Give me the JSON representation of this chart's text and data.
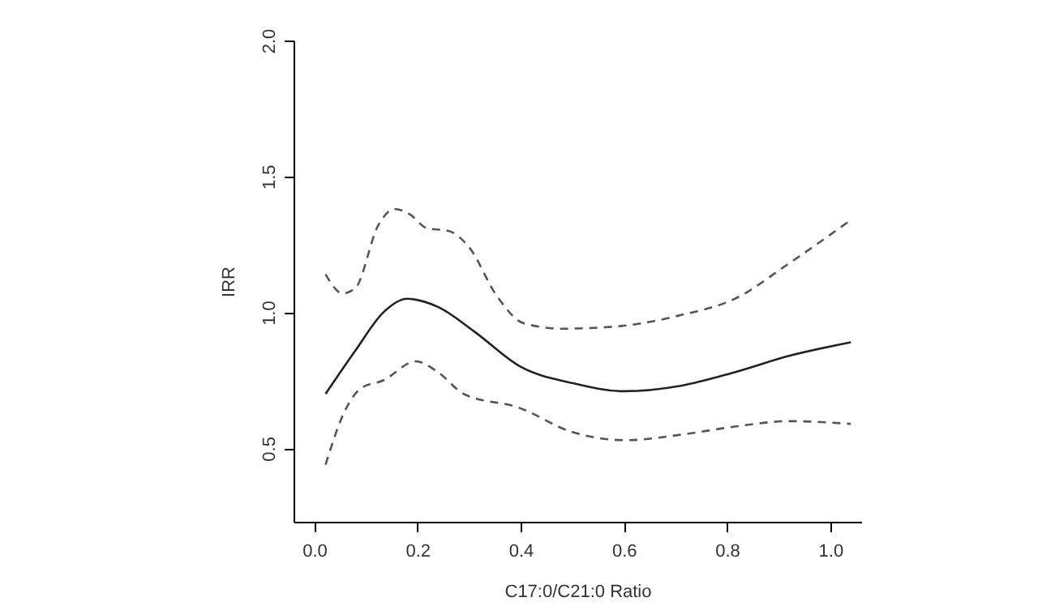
{
  "chart_data": {
    "type": "line",
    "xlabel": "C17:0/C21:0 Ratio",
    "ylabel": "IRR",
    "xlim": [
      -0.04,
      1.06
    ],
    "xticks": [
      {
        "value": 0,
        "label": "0.0"
      },
      0.2,
      0.4,
      0.6,
      0.8,
      {
        "value": 1,
        "label": "1.0"
      }
    ],
    "ylim": [
      0.23,
      2.0
    ],
    "yticks": [
      0.5,
      {
        "value": 1,
        "label": "1.0"
      },
      1.5,
      {
        "value": 2,
        "label": "2.0"
      }
    ],
    "grid": false,
    "series": [
      {
        "color": "#222222",
        "line_style": "solid",
        "x": [
          0.022,
          0.08,
          0.134,
          0.18,
          0.24,
          0.31,
          0.4,
          0.5,
          0.6,
          0.71,
          0.815,
          0.92,
          1.04
        ],
        "values": [
          0.7,
          0.86,
          1.0,
          1.05,
          1.02,
          0.93,
          0.8,
          0.74,
          0.71,
          0.73,
          0.78,
          0.84,
          0.89
        ]
      },
      {
        "color": "#555555",
        "line_style": "dashed",
        "x": [
          0.022,
          0.055,
          0.08,
          0.124,
          0.155,
          0.186,
          0.218,
          0.26,
          0.3,
          0.354,
          0.406,
          0.48,
          0.595,
          0.71,
          0.815,
          0.92,
          1.04
        ],
        "values": [
          1.14,
          1.07,
          1.09,
          1.32,
          1.38,
          1.36,
          1.31,
          1.3,
          1.24,
          1.06,
          0.96,
          0.94,
          0.95,
          0.99,
          1.05,
          1.18,
          1.34
        ]
      },
      {
        "color": "#555555",
        "line_style": "dashed",
        "x": [
          0.022,
          0.06,
          0.09,
          0.134,
          0.197,
          0.24,
          0.29,
          0.396,
          0.5,
          0.605,
          0.71,
          0.815,
          0.92,
          1.04
        ],
        "values": [
          0.44,
          0.64,
          0.72,
          0.75,
          0.82,
          0.78,
          0.7,
          0.65,
          0.56,
          0.53,
          0.55,
          0.58,
          0.6,
          0.59
        ]
      }
    ]
  }
}
